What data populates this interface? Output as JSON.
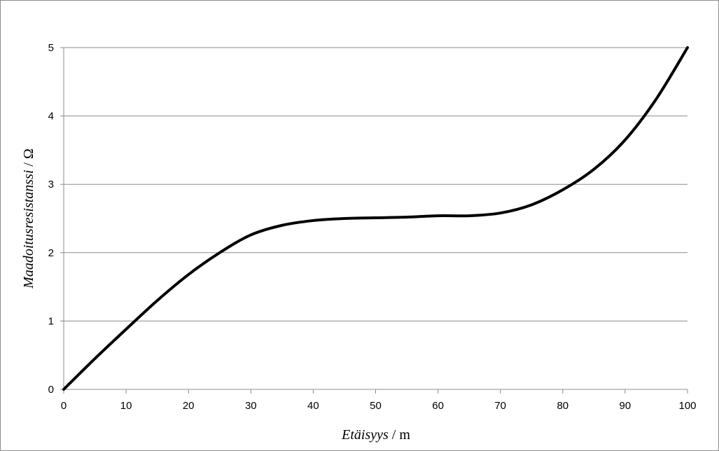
{
  "chart_data": {
    "type": "line",
    "title": "",
    "xlabel": {
      "var": "Etäisyys",
      "unit": " / m"
    },
    "ylabel": {
      "var": "Maadoitusresistanssi",
      "unit": " / Ω"
    },
    "xlim": [
      0,
      100
    ],
    "ylim": [
      0,
      5
    ],
    "x_ticks": [
      0,
      10,
      20,
      30,
      40,
      50,
      60,
      70,
      80,
      90,
      100
    ],
    "y_ticks": [
      0,
      1,
      2,
      3,
      4,
      5
    ],
    "grid": "horizontal",
    "legend": "none",
    "series": [
      {
        "color": "#000000",
        "points": [
          [
            0,
            0
          ],
          [
            5,
            0.45
          ],
          [
            10,
            0.88
          ],
          [
            15,
            1.3
          ],
          [
            20,
            1.68
          ],
          [
            25,
            2.0
          ],
          [
            30,
            2.26
          ],
          [
            35,
            2.4
          ],
          [
            40,
            2.47
          ],
          [
            45,
            2.5
          ],
          [
            50,
            2.51
          ],
          [
            55,
            2.52
          ],
          [
            60,
            2.54
          ],
          [
            65,
            2.54
          ],
          [
            70,
            2.58
          ],
          [
            75,
            2.7
          ],
          [
            80,
            2.92
          ],
          [
            85,
            3.22
          ],
          [
            90,
            3.65
          ],
          [
            95,
            4.25
          ],
          [
            100,
            5.0
          ]
        ]
      }
    ]
  }
}
